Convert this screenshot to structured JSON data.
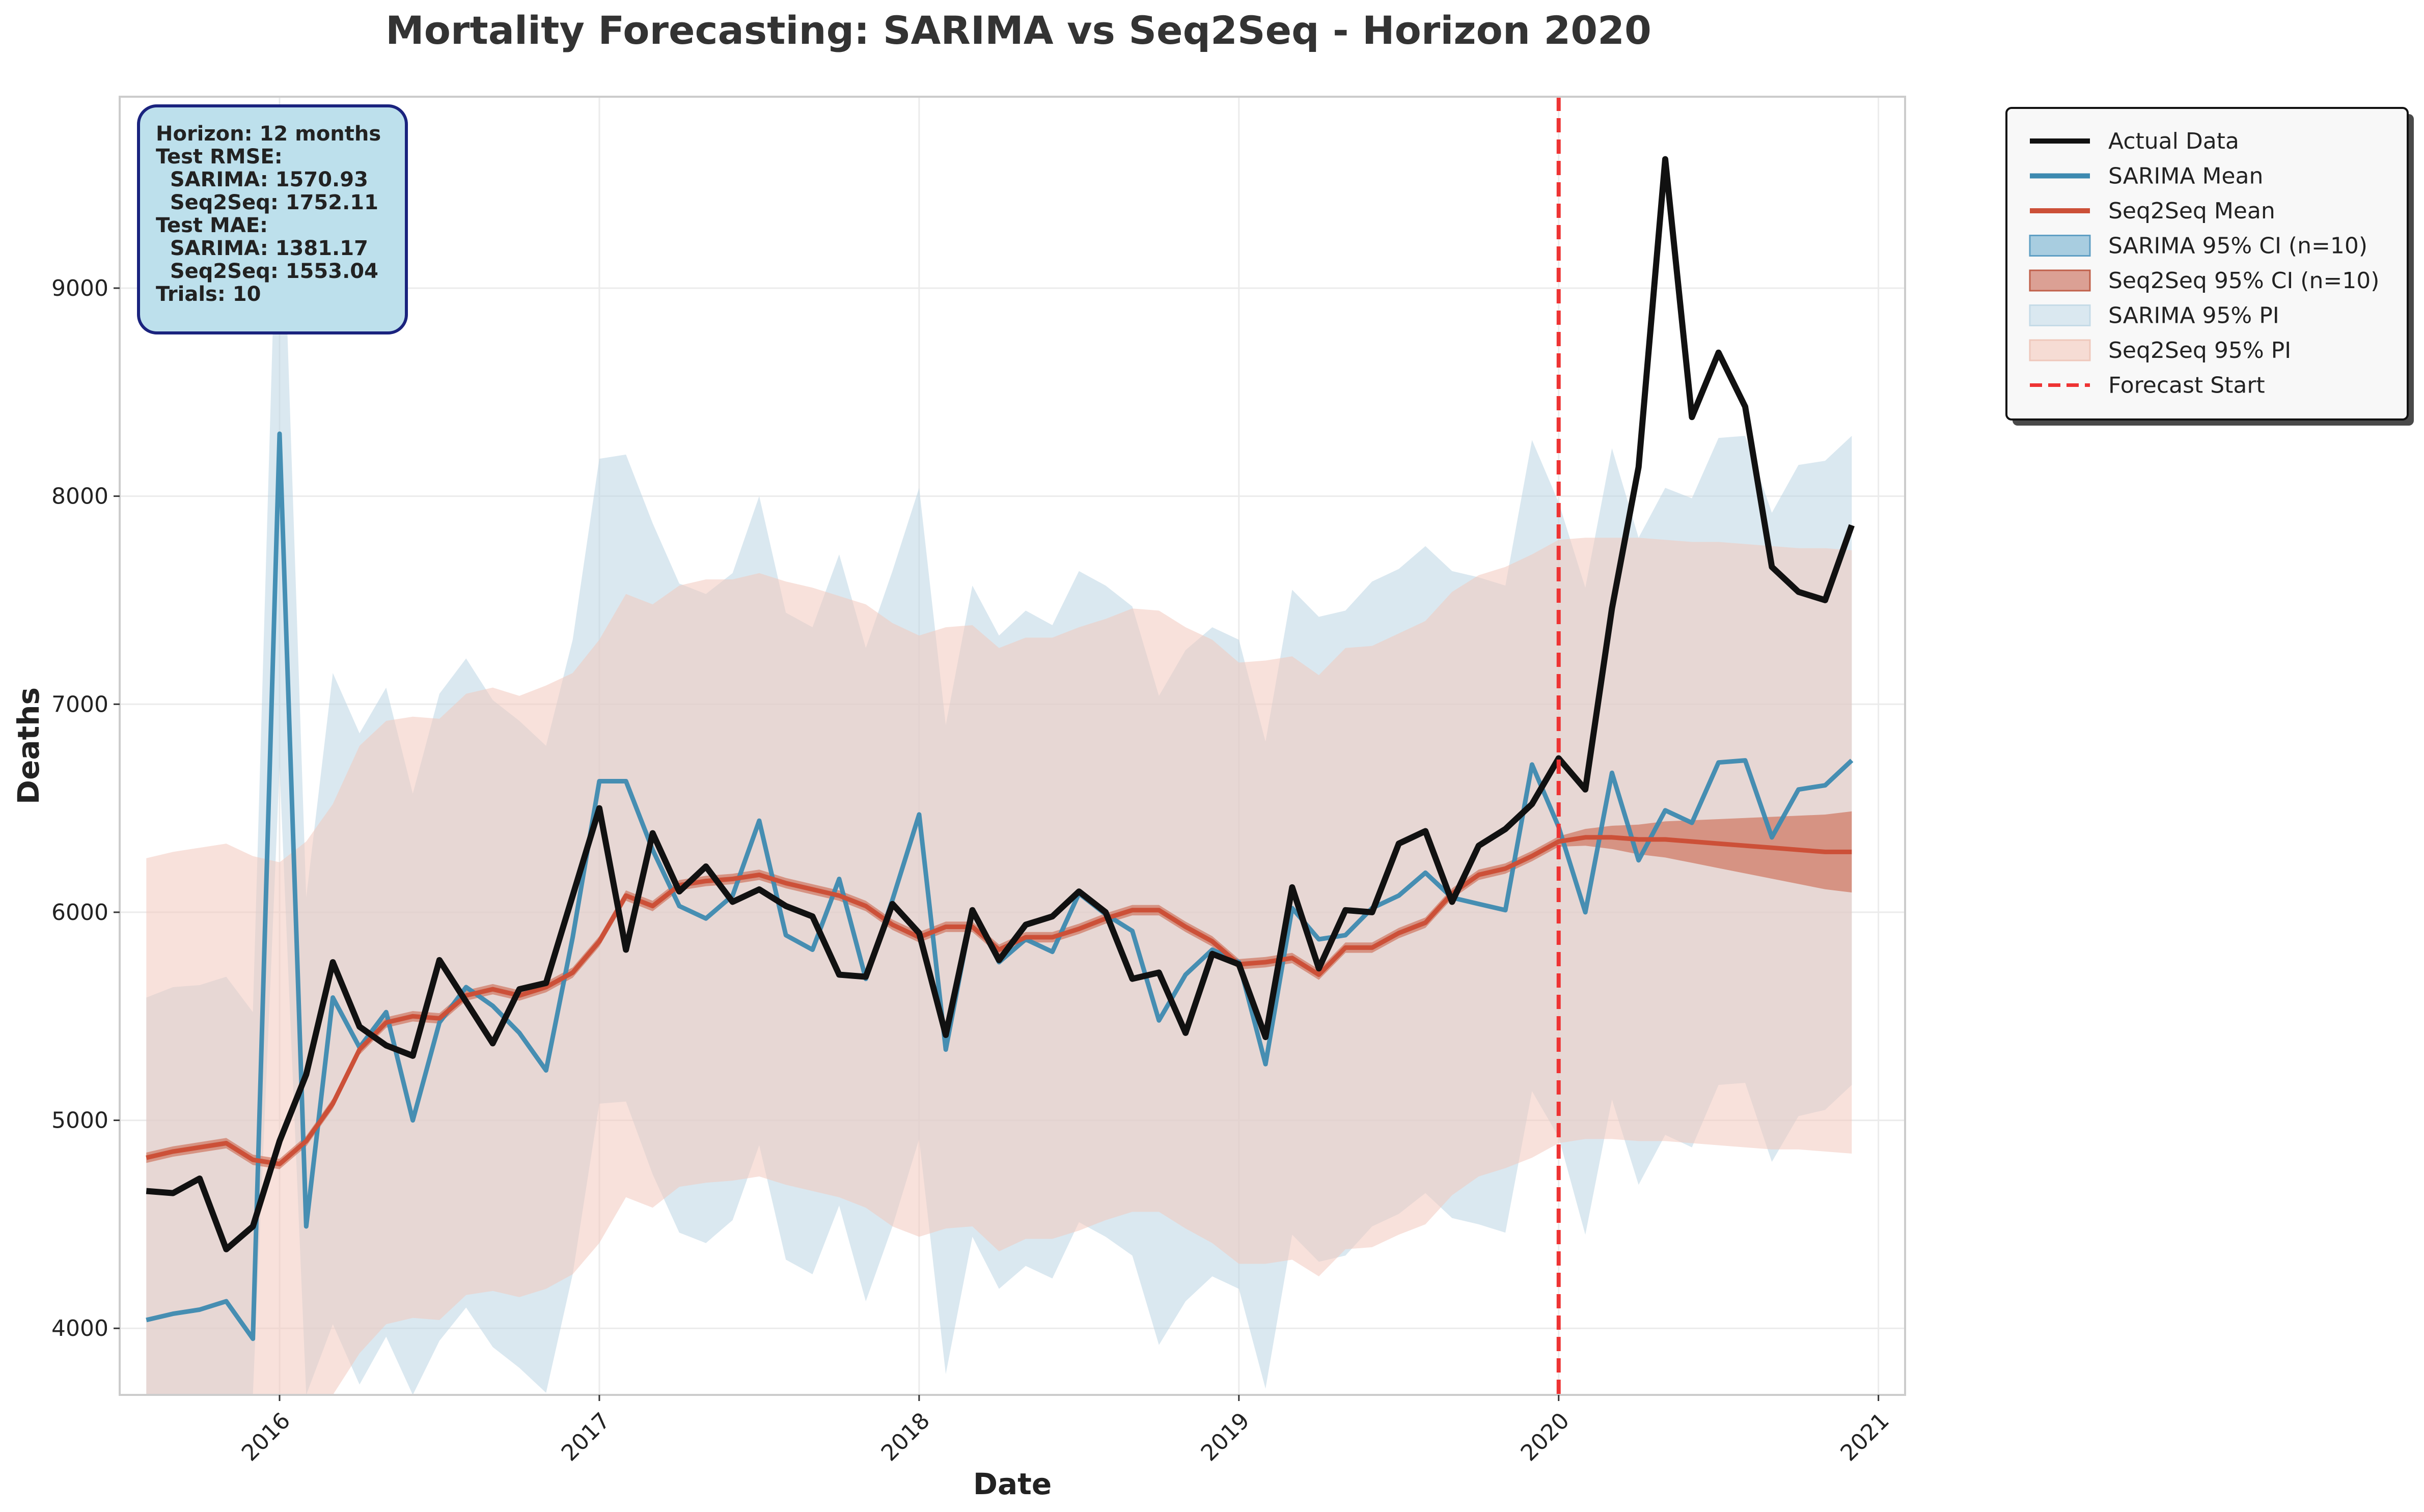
{
  "chart_data": {
    "type": "line",
    "title": "Mortality Forecasting: SARIMA vs Seq2Seq - Horizon 2020",
    "xlabel": "Date",
    "ylabel": "Deaths",
    "xlim": [
      "2015-07",
      "2021-02"
    ],
    "ylim": [
      3680,
      9920
    ],
    "x_ticks": [
      "2016",
      "2017",
      "2018",
      "2019",
      "2020",
      "2021"
    ],
    "y_ticks": [
      4000,
      5000,
      6000,
      7000,
      8000,
      9000
    ],
    "grid": true,
    "legend_position": "outside-right",
    "forecast_start": "2020-01",
    "dates": [
      "2015-08",
      "2015-09",
      "2015-10",
      "2015-11",
      "2015-12",
      "2016-01",
      "2016-02",
      "2016-03",
      "2016-04",
      "2016-05",
      "2016-06",
      "2016-07",
      "2016-08",
      "2016-09",
      "2016-10",
      "2016-11",
      "2016-12",
      "2017-01",
      "2017-02",
      "2017-03",
      "2017-04",
      "2017-05",
      "2017-06",
      "2017-07",
      "2017-08",
      "2017-09",
      "2017-10",
      "2017-11",
      "2017-12",
      "2018-01",
      "2018-02",
      "2018-03",
      "2018-04",
      "2018-05",
      "2018-06",
      "2018-07",
      "2018-08",
      "2018-09",
      "2018-10",
      "2018-11",
      "2018-12",
      "2019-01",
      "2019-02",
      "2019-03",
      "2019-04",
      "2019-05",
      "2019-06",
      "2019-07",
      "2019-08",
      "2019-09",
      "2019-10",
      "2019-11",
      "2019-12",
      "2020-01",
      "2020-02",
      "2020-03",
      "2020-04",
      "2020-05",
      "2020-06",
      "2020-07",
      "2020-08",
      "2020-09",
      "2020-10",
      "2020-11",
      "2020-12"
    ],
    "series": [
      {
        "name": "Actual Data",
        "color": "#111111",
        "style": "line",
        "values": [
          4660,
          4650,
          4720,
          4380,
          4490,
          4900,
          5220,
          5760,
          5450,
          5360,
          5310,
          5770,
          5570,
          5370,
          5630,
          5660,
          6080,
          6500,
          5820,
          6380,
          6100,
          6220,
          6050,
          6110,
          6030,
          5980,
          5700,
          5690,
          6040,
          5900,
          5410,
          6010,
          5770,
          5940,
          5980,
          6100,
          6000,
          5680,
          5710,
          5420,
          5800,
          5750,
          5400,
          6120,
          5730,
          6010,
          6000,
          6330,
          6390,
          6050,
          6320,
          6400,
          6520,
          6740,
          6590,
          7460,
          8140,
          9620,
          8380,
          8690,
          8430,
          7660,
          7540,
          7500,
          7860
        ]
      },
      {
        "name": "SARIMA Mean",
        "color": "#3d8ab0",
        "style": "line",
        "values": [
          4040,
          4070,
          4090,
          4130,
          3950,
          8300,
          4490,
          5590,
          5350,
          5520,
          5000,
          5470,
          5640,
          5550,
          5420,
          5240,
          5880,
          6630,
          6630,
          6300,
          6030,
          5970,
          6080,
          6440,
          5890,
          5820,
          6160,
          5680,
          6060,
          6470,
          5340,
          6010,
          5760,
          5870,
          5810,
          6090,
          5990,
          5910,
          5480,
          5700,
          5820,
          5760,
          5270,
          6020,
          5870,
          5890,
          6020,
          6080,
          6190,
          6070,
          6040,
          6010,
          6710,
          6410,
          6000,
          6670,
          6250,
          6490,
          6430,
          6720,
          6730,
          6360,
          6590,
          6610,
          6730
        ]
      },
      {
        "name": "Seq2Seq Mean",
        "color": "#cc5038",
        "style": "line",
        "values": [
          4820,
          4850,
          4870,
          4890,
          4810,
          4790,
          4900,
          5080,
          5340,
          5470,
          5500,
          5490,
          5600,
          5630,
          5600,
          5640,
          5710,
          5860,
          6080,
          6030,
          6130,
          6150,
          6160,
          6180,
          6140,
          6110,
          6080,
          6030,
          5940,
          5880,
          5930,
          5930,
          5820,
          5880,
          5880,
          5920,
          5970,
          6010,
          6010,
          5930,
          5860,
          5750,
          5760,
          5780,
          5700,
          5830,
          5830,
          5900,
          5950,
          6090,
          6180,
          6210,
          6270,
          6340,
          6360,
          6360,
          6350,
          6350,
          6340,
          6330,
          6320,
          6310,
          6300,
          6290,
          6290
        ]
      },
      {
        "name": "SARIMA 95% CI (n=10)",
        "color": "#7fb3d0",
        "style": "legend-only"
      },
      {
        "name": "Seq2Seq 95% CI (n=10)",
        "color": "#cc6e58",
        "style": "band",
        "halfwidth_start": 25,
        "halfwidth_end": 195,
        "grow_from_index": 53
      },
      {
        "name": "SARIMA 95% PI",
        "color": "#bcd6e3",
        "style": "band",
        "upper": [
          5590,
          5640,
          5650,
          5690,
          5520,
          9920,
          6070,
          7150,
          6860,
          7080,
          6570,
          7050,
          7220,
          7020,
          6920,
          6800,
          7310,
          8180,
          8200,
          7870,
          7580,
          7530,
          7630,
          8000,
          7440,
          7370,
          7720,
          7270,
          7640,
          8040,
          6900,
          7570,
          7330,
          7450,
          7380,
          7640,
          7570,
          7470,
          7040,
          7260,
          7370,
          7310,
          6820,
          7550,
          7420,
          7450,
          7590,
          7650,
          7760,
          7640,
          7610,
          7570,
          8270,
          7970,
          7560,
          8230,
          7800,
          8040,
          7990,
          8280,
          8290,
          7920,
          8150,
          8170,
          8290
        ],
        "lower": [
          3680,
          3680,
          3680,
          3680,
          3680,
          6700,
          3680,
          4020,
          3730,
          3960,
          3680,
          3940,
          4100,
          3910,
          3810,
          3690,
          4260,
          5080,
          5090,
          4740,
          4460,
          4410,
          4520,
          4880,
          4330,
          4260,
          4590,
          4130,
          4490,
          4910,
          3780,
          4440,
          4190,
          4300,
          4240,
          4510,
          4440,
          4350,
          3920,
          4130,
          4250,
          4190,
          3710,
          4450,
          4320,
          4350,
          4490,
          4550,
          4650,
          4530,
          4500,
          4460,
          5140,
          4920,
          4450,
          5100,
          4690,
          4930,
          4870,
          5170,
          5180,
          4800,
          5020,
          5050,
          5170
        ]
      },
      {
        "name": "Seq2Seq 95% PI",
        "color": "#f2c8bd",
        "style": "band",
        "upper": [
          6260,
          6290,
          6310,
          6330,
          6270,
          6240,
          6340,
          6520,
          6800,
          6920,
          6940,
          6930,
          7050,
          7080,
          7040,
          7090,
          7150,
          7310,
          7530,
          7480,
          7570,
          7600,
          7600,
          7630,
          7590,
          7560,
          7520,
          7480,
          7390,
          7330,
          7370,
          7380,
          7270,
          7320,
          7320,
          7370,
          7410,
          7460,
          7450,
          7370,
          7310,
          7200,
          7210,
          7230,
          7140,
          7270,
          7280,
          7340,
          7400,
          7540,
          7620,
          7660,
          7720,
          7790,
          7800,
          7800,
          7800,
          7790,
          7780,
          7780,
          7770,
          7760,
          7750,
          7750,
          7740
        ],
        "lower": [
          3680,
          3680,
          3680,
          3680,
          3680,
          3680,
          3680,
          3680,
          3880,
          4020,
          4050,
          4040,
          4160,
          4180,
          4150,
          4190,
          4260,
          4410,
          4630,
          4580,
          4680,
          4700,
          4710,
          4730,
          4690,
          4660,
          4630,
          4580,
          4490,
          4440,
          4480,
          4490,
          4370,
          4430,
          4430,
          4470,
          4520,
          4560,
          4560,
          4480,
          4410,
          4310,
          4310,
          4330,
          4250,
          4380,
          4390,
          4450,
          4500,
          4640,
          4730,
          4770,
          4820,
          4890,
          4910,
          4910,
          4900,
          4900,
          4890,
          4880,
          4870,
          4860,
          4860,
          4850,
          4840
        ]
      }
    ]
  },
  "stats_box": {
    "lines": [
      "Horizon: 12 months",
      "Test RMSE:",
      "  SARIMA: 1570.93",
      "  Seq2Seq: 1752.11",
      "Test MAE:",
      "  SARIMA: 1381.17",
      "  Seq2Seq: 1553.04",
      "Trials: 10"
    ]
  },
  "legend": {
    "items": [
      {
        "label": "Actual Data",
        "kind": "line",
        "color": "#111111"
      },
      {
        "label": "SARIMA Mean",
        "kind": "line",
        "color": "#3d8ab0"
      },
      {
        "label": "Seq2Seq Mean",
        "kind": "line",
        "color": "#cc5038"
      },
      {
        "label": "SARIMA 95% CI (n=10)",
        "kind": "patch",
        "color": "#a8cde0",
        "edge": "#5f9fc4"
      },
      {
        "label": "Seq2Seq 95% CI (n=10)",
        "kind": "patch",
        "color": "#dba094",
        "edge": "#c0604a"
      },
      {
        "label": "SARIMA 95% PI",
        "kind": "patch",
        "color": "#dae8f0",
        "edge": "#c5dbe7"
      },
      {
        "label": "Seq2Seq 95% PI",
        "kind": "patch",
        "color": "#f6dcd4",
        "edge": "#efc8bc"
      },
      {
        "label": "Forecast Start",
        "kind": "dashed",
        "color": "#ee3333"
      }
    ]
  }
}
